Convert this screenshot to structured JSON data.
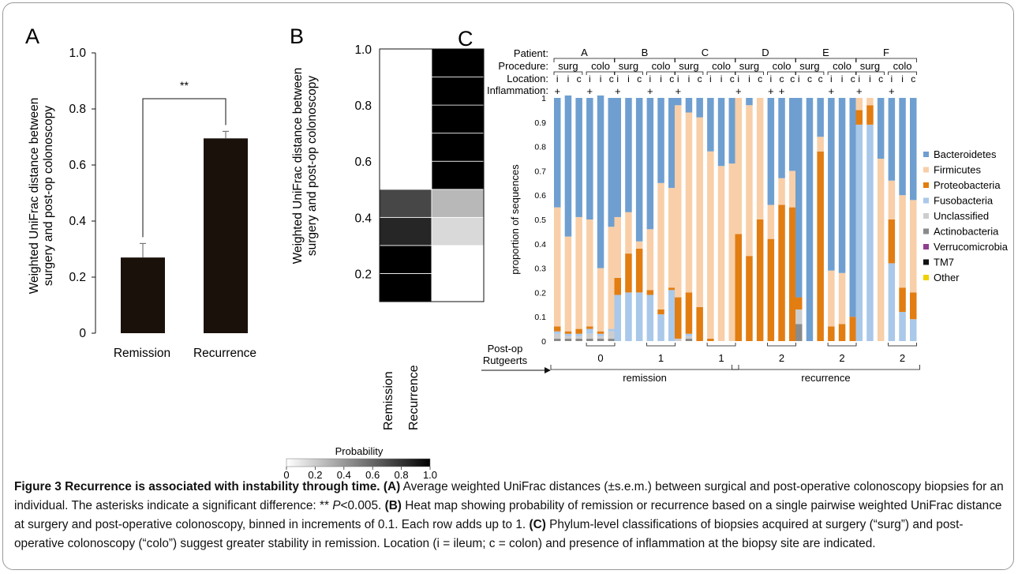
{
  "panel_labels": {
    "a": "A",
    "b": "B",
    "c": "C"
  },
  "panel_a": {
    "ylabel_line1": "Weighted UniFrac distance between",
    "ylabel_line2": "surgery and post-op colonoscopy",
    "ytick_labels": [
      "0",
      "0.2",
      "0.4",
      "0.6",
      "0.8",
      "1.0"
    ],
    "significance": "**"
  },
  "panel_b": {
    "ylabel_line1": "Weighted UniFrac distance between",
    "ylabel_line2": "surgery and post-op colonoscopy",
    "ytick_labels": [
      "0.2",
      "0.4",
      "0.6",
      "0.8",
      "1.0"
    ],
    "colorbar_title": "Probability",
    "colorbar_ticks": [
      "0",
      "0.2",
      "0.4",
      "0.6",
      "0.8",
      "1.0"
    ]
  },
  "panel_c": {
    "row_labels": {
      "patient": "Patient:",
      "procedure": "Procedure:",
      "location": "Location:",
      "inflammation": "Inflammation:"
    },
    "ylabel": "proportion of sequences",
    "ytick_labels": [
      "0",
      "0.1",
      "0.2",
      "0.3",
      "0.4",
      "0.5",
      "0.6",
      "0.7",
      "0.8",
      "0.9",
      "1"
    ],
    "postop_label_line1": "Post-op",
    "postop_label_line2": "Rutgeerts",
    "group_labels": [
      "remission",
      "recurrence"
    ],
    "patients": [
      {
        "name": "A",
        "locs": [
          "i",
          "i",
          "c",
          "i",
          "i",
          "c"
        ],
        "infl": [
          "+",
          "",
          "",
          "+",
          "",
          ""
        ],
        "rutgeerts": "0"
      },
      {
        "name": "B",
        "locs": [
          "i",
          "i",
          "c",
          "i",
          "i",
          "c"
        ],
        "infl": [
          "+",
          "",
          "",
          "+",
          "",
          ""
        ],
        "rutgeerts": "1"
      },
      {
        "name": "C",
        "locs": [
          "i",
          "i",
          "c",
          "i",
          "i",
          "c"
        ],
        "infl": [
          "+",
          "",
          "",
          "",
          "",
          ""
        ],
        "rutgeerts": "1"
      },
      {
        "name": "D",
        "locs": [
          "i",
          "i",
          "c",
          "i",
          "c",
          "c"
        ],
        "infl": [
          "+",
          "",
          "",
          "+",
          "+",
          ""
        ],
        "rutgeerts": "2"
      },
      {
        "name": "E",
        "locs": [
          "i",
          "c",
          "c",
          "i",
          "i",
          "c"
        ],
        "infl": [
          "",
          "",
          "",
          "+",
          "",
          ""
        ],
        "rutgeerts": "2"
      },
      {
        "name": "F",
        "locs": [
          "i",
          "i",
          "c",
          "i",
          "i",
          "c"
        ],
        "infl": [
          "+",
          "",
          "",
          "+",
          "",
          ""
        ],
        "rutgeerts": "2"
      }
    ],
    "procedure_labels": [
      "surg",
      "colo"
    ],
    "legend": [
      "Bacteroidetes",
      "Firmicutes",
      "Proteobacteria",
      "Fusobacteria",
      "Unclassified",
      "Actinobacteria",
      "Verrucomicrobia",
      "TM7",
      "Other"
    ],
    "colors": {
      "Bacteroidetes": "#6f9fd0",
      "Firmicutes": "#f8cfa8",
      "Proteobacteria": "#e27d12",
      "Fusobacteria": "#aac8e9",
      "Unclassified": "#cdcdcd",
      "Actinobacteria": "#8a8a8a",
      "Verrucomicrobia": "#8e3f8e",
      "TM7": "#111111",
      "Other": "#f0d000"
    }
  },
  "caption": {
    "title": "Figure 3 Recurrence is associated with instability through time.",
    "a_tag": "(A)",
    "a_text": " Average weighted UniFrac distances (±s.e.m.) between surgical and post-operative colonoscopy biopsies for an individual. The asterisks indicate a significant difference: ** ",
    "p_symbol": "P",
    "a_text2": "<0.005. ",
    "b_tag": "(B)",
    "b_text": " Heat map showing probability of remission or recurrence based on a single pairwise weighted UniFrac distance at surgery and post-operative colonoscopy, binned in increments of 0.1. Each row adds up to 1. ",
    "c_tag": "(C)",
    "c_text": " Phylum-level classifications of biopsies acquired at surgery (“surg”) and post-operative colonoscopy (“colo”) suggest greater stability in remission. Location (i = ileum; c = colon) and presence of inflammation at the biopsy site are indicated."
  },
  "chart_data": [
    {
      "type": "bar",
      "categories": [
        "Remission",
        "Recurrence"
      ],
      "values": [
        0.27,
        0.695
      ],
      "errors": [
        0.05,
        0.025
      ],
      "ylim": [
        0,
        1.0
      ],
      "ylabel": "Weighted UniFrac distance between surgery and post-op colonoscopy",
      "annotation": "**"
    },
    {
      "type": "heatmap",
      "columns": [
        "Remission",
        "Recurrence"
      ],
      "row_bins": [
        "0.1-0.2",
        "0.2-0.3",
        "0.3-0.4",
        "0.4-0.5",
        "0.5-0.6",
        "0.6-0.7",
        "0.7-0.8",
        "0.8-0.9",
        "0.9-1.0"
      ],
      "probabilities": {
        "Remission": [
          1.0,
          1.0,
          0.85,
          0.72,
          0.0,
          0.0,
          0.0,
          0.0,
          0.0
        ],
        "Recurrence": [
          0.0,
          0.0,
          0.15,
          0.28,
          1.0,
          1.0,
          1.0,
          1.0,
          1.0
        ]
      },
      "colorbar": {
        "title": "Probability",
        "range": [
          0,
          1.0
        ]
      }
    },
    {
      "type": "bar",
      "stacked": true,
      "ylabel": "proportion of sequences",
      "ylim": [
        0,
        1
      ],
      "categories": [
        "A-surg-i",
        "A-surg-i",
        "A-surg-c",
        "A-colo-i",
        "A-colo-i",
        "A-colo-c",
        "B-surg-i",
        "B-surg-i",
        "B-surg-c",
        "B-colo-i",
        "B-colo-i",
        "B-colo-c",
        "C-surg-i",
        "C-surg-i",
        "C-surg-c",
        "C-colo-i",
        "C-colo-i",
        "C-colo-c",
        "D-surg-i",
        "D-surg-i",
        "D-surg-c",
        "D-colo-i",
        "D-colo-c",
        "D-colo-c",
        "E-surg-i",
        "E-surg-c",
        "E-surg-c",
        "E-colo-i",
        "E-colo-i",
        "E-colo-c",
        "F-surg-i",
        "F-surg-i",
        "F-surg-c",
        "F-colo-i",
        "F-colo-i",
        "F-colo-c"
      ],
      "series": [
        {
          "name": "Actinobacteria",
          "values": [
            0.01,
            0.01,
            0.01,
            0.01,
            0.01,
            0.01,
            0.0,
            0.0,
            0.0,
            0.0,
            0.0,
            0.0,
            0.0,
            0.01,
            0.0,
            0.0,
            0.0,
            0.0,
            0.0,
            0.0,
            0.0,
            0.0,
            0.0,
            0.0,
            0.07,
            0.0,
            0.0,
            0.0,
            0.0,
            0.0,
            0.0,
            0.0,
            0.0,
            0.0,
            0.0,
            0.0
          ]
        },
        {
          "name": "Unclassified",
          "values": [
            0.02,
            0.01,
            0.01,
            0.02,
            0.01,
            0.03,
            0.0,
            0.0,
            0.0,
            0.0,
            0.0,
            0.0,
            0.01,
            0.01,
            0.0,
            0.0,
            0.0,
            0.0,
            0.0,
            0.0,
            0.0,
            0.0,
            0.0,
            0.0,
            0.06,
            0.0,
            0.0,
            0.0,
            0.0,
            0.0,
            0.0,
            0.0,
            0.0,
            0.0,
            0.0,
            0.0
          ]
        },
        {
          "name": "Fusobacteria",
          "values": [
            0.01,
            0.01,
            0.01,
            0.02,
            0.01,
            0.01,
            0.19,
            0.2,
            0.2,
            0.19,
            0.11,
            0.21,
            0.0,
            0.01,
            0.0,
            0.0,
            0.0,
            0.0,
            0.0,
            0.0,
            0.0,
            0.0,
            0.0,
            0.0,
            0.0,
            0.0,
            0.0,
            0.0,
            0.0,
            0.0,
            0.89,
            0.89,
            0.0,
            0.32,
            0.12,
            0.09
          ]
        },
        {
          "name": "Proteobacteria",
          "values": [
            0.02,
            0.01,
            0.02,
            0.01,
            0.01,
            0.0,
            0.07,
            0.16,
            0.18,
            0.02,
            0.02,
            0.01,
            0.17,
            0.17,
            0.14,
            0.01,
            0.0,
            0.0,
            0.44,
            0.35,
            0.5,
            0.42,
            0.56,
            0.55,
            0.05,
            0.0,
            0.78,
            0.06,
            0.07,
            0.1,
            0.06,
            0.08,
            0.0,
            0.18,
            0.1,
            0.11
          ]
        },
        {
          "name": "Firmicutes",
          "values": [
            0.49,
            0.39,
            0.46,
            0.44,
            0.26,
            0.42,
            0.25,
            0.17,
            0.03,
            0.25,
            0.52,
            0.41,
            0.79,
            0.74,
            0.78,
            0.77,
            0.72,
            0.73,
            0.56,
            0.62,
            0.5,
            0.14,
            0.11,
            0.15,
            0.0,
            0.0,
            0.06,
            0.23,
            0.21,
            0.0,
            0.05,
            0.03,
            0.75,
            0.16,
            0.38,
            0.38
          ]
        },
        {
          "name": "Bacteroidetes",
          "values": [
            0.45,
            0.58,
            0.49,
            0.5,
            0.71,
            0.53,
            0.49,
            0.47,
            0.59,
            0.54,
            0.35,
            0.37,
            0.03,
            0.06,
            0.08,
            0.22,
            0.28,
            0.27,
            0.0,
            0.03,
            0.0,
            0.44,
            0.33,
            0.3,
            0.82,
            1.0,
            0.16,
            0.71,
            0.72,
            0.9,
            0.0,
            0.0,
            0.25,
            0.34,
            0.4,
            0.42
          ]
        }
      ]
    }
  ]
}
